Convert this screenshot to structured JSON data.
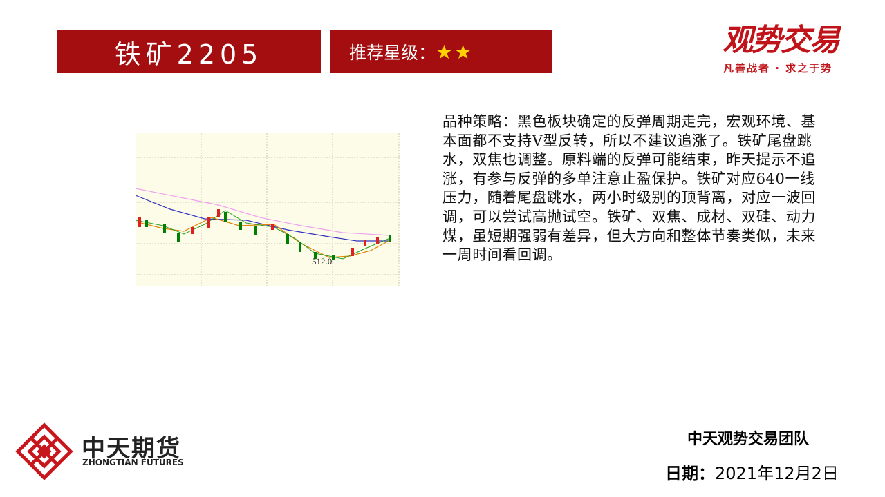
{
  "header": {
    "title": "铁矿2205",
    "rating_label": "推荐星级：",
    "rating": "★★"
  },
  "brand": {
    "name": "观势交易",
    "slogan": "凡善战者 · 求之于势"
  },
  "content": {
    "strategy_label": "品种策略：",
    "strategy_text": "黑色板块确定的反弹周期走完，宏观环境、基本面都不支持V型反转，所以不建议追涨了。铁矿尾盘跳水，双焦也调整。原料端的反弹可能结束，昨天提示不追涨，有参与反弹的多单注意止盈保护。铁矿对应640一线压力，随着尾盘跳水，两小时级别的顶背离，对应一波回调，可以尝试高抛试空。铁矿、双焦、成材、双硅、动力煤，虽短期强弱有差异，但大方向和整体节奏类似，未来一周时间看回调。"
  },
  "chart_image": {
    "label": "512.0"
  },
  "footer": {
    "company": "中天期货",
    "company_en": "ZHONGTIAN FUTURES",
    "team": "中天观势交易团队",
    "date_label": "日期：",
    "date": "2021年12月2日"
  }
}
